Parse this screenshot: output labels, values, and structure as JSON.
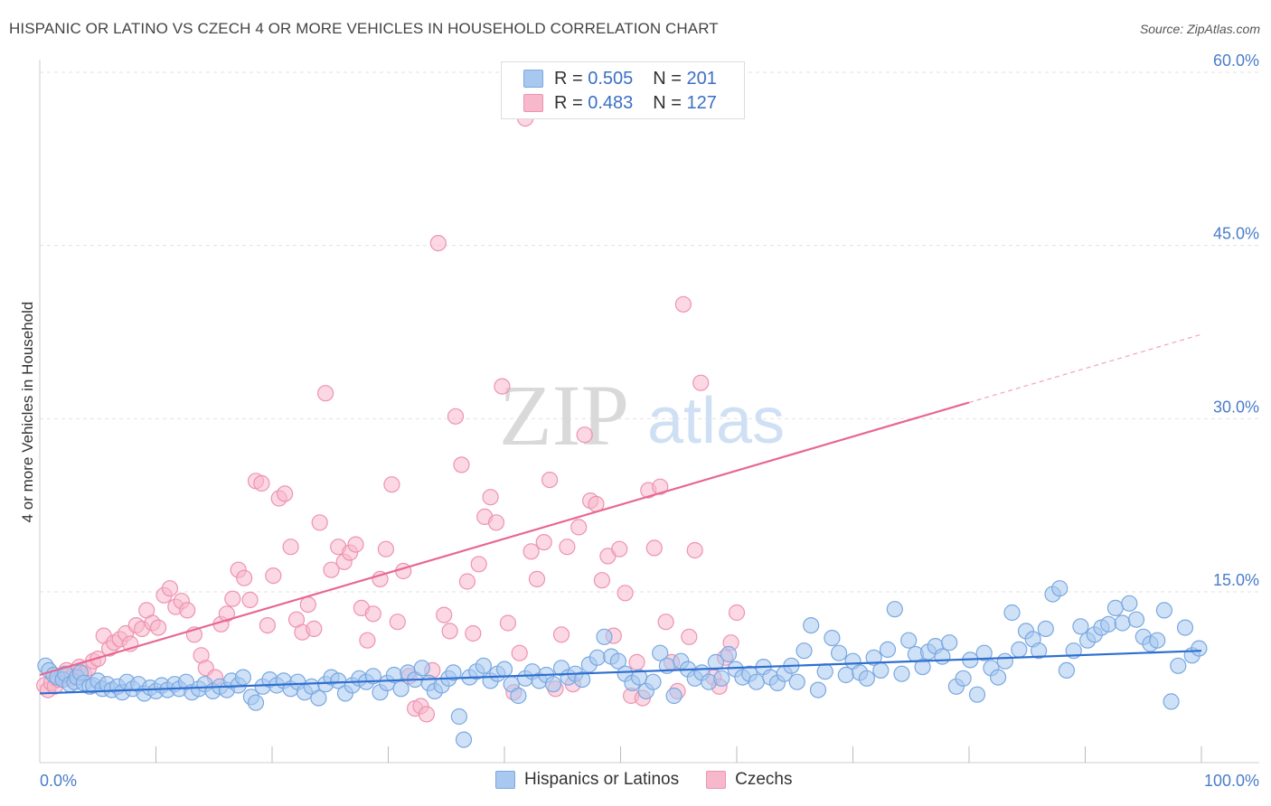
{
  "title": "HISPANIC OR LATINO VS CZECH 4 OR MORE VEHICLES IN HOUSEHOLD CORRELATION CHART",
  "source": "Source: ZipAtlas.com",
  "watermark": {
    "zip": "ZIP",
    "atlas": "atlas"
  },
  "legend_top": [
    {
      "r_label": "R =",
      "r_value": "0.505",
      "n_label": "N =",
      "n_value": "201"
    },
    {
      "r_label": "R =",
      "r_value": "0.483",
      "n_label": "N =",
      "n_value": "127"
    }
  ],
  "legend_bottom": [
    {
      "label": "Hispanics or Latinos"
    },
    {
      "label": "Czechs"
    }
  ],
  "colors": {
    "blue_fill": "#a8c8f0",
    "blue_stroke": "#7aa8e0",
    "blue_line": "#2f6fd0",
    "pink_fill": "#f7b8cc",
    "pink_stroke": "#ee93b0",
    "pink_line": "#e8678f",
    "tick_label": "#4a7cc9",
    "grid": "#e2e2e2"
  },
  "chart_data": {
    "type": "scatter",
    "title": "HISPANIC OR LATINO VS CZECH 4 OR MORE VEHICLES IN HOUSEHOLD CORRELATION CHART",
    "xlabel": "",
    "ylabel": "4 or more Vehicles in Household",
    "xlim": [
      0,
      100
    ],
    "ylim": [
      0,
      60
    ],
    "x_tick_labels": [
      "0.0%",
      "100.0%"
    ],
    "y_ticks": [
      15,
      30,
      45,
      60
    ],
    "y_tick_labels": [
      "15.0%",
      "30.0%",
      "45.0%",
      "60.0%"
    ],
    "grid": "horizontal dashed",
    "legend_position": "top-center",
    "series": [
      {
        "name": "Hispanics or Latinos",
        "color": "#a8c8f0",
        "R": 0.505,
        "N": 201,
        "trend": {
          "x": [
            0,
            100
          ],
          "y": [
            6.2,
            9.9
          ]
        },
        "points": [
          [
            0.5,
            8.6
          ],
          [
            0.8,
            8.2
          ],
          [
            1.2,
            7.8
          ],
          [
            1.5,
            7.6
          ],
          [
            2.0,
            7.4
          ],
          [
            2.2,
            7.9
          ],
          [
            2.6,
            7.0
          ],
          [
            3.0,
            7.2
          ],
          [
            3.2,
            7.6
          ],
          [
            3.5,
            8.0
          ],
          [
            3.8,
            7.1
          ],
          [
            4.3,
            6.8
          ],
          [
            4.6,
            6.9
          ],
          [
            5.0,
            7.3
          ],
          [
            5.4,
            6.6
          ],
          [
            5.8,
            7.0
          ],
          [
            6.2,
            6.5
          ],
          [
            6.7,
            6.8
          ],
          [
            7.1,
            6.3
          ],
          [
            7.5,
            7.2
          ],
          [
            8.0,
            6.6
          ],
          [
            8.5,
            7.0
          ],
          [
            9.0,
            6.2
          ],
          [
            9.5,
            6.7
          ],
          [
            10.0,
            6.4
          ],
          [
            10.5,
            6.9
          ],
          [
            11.0,
            6.5
          ],
          [
            11.6,
            7.0
          ],
          [
            12.0,
            6.6
          ],
          [
            12.6,
            7.2
          ],
          [
            13.1,
            6.3
          ],
          [
            13.7,
            6.6
          ],
          [
            14.2,
            7.0
          ],
          [
            14.9,
            6.4
          ],
          [
            15.5,
            6.8
          ],
          [
            16.1,
            6.5
          ],
          [
            16.5,
            7.3
          ],
          [
            17.1,
            6.9
          ],
          [
            17.5,
            7.6
          ],
          [
            18.2,
            5.9
          ],
          [
            18.6,
            5.4
          ],
          [
            19.2,
            6.8
          ],
          [
            19.8,
            7.4
          ],
          [
            20.4,
            6.9
          ],
          [
            21.0,
            7.3
          ],
          [
            21.6,
            6.6
          ],
          [
            22.2,
            7.2
          ],
          [
            22.8,
            6.3
          ],
          [
            23.4,
            6.8
          ],
          [
            24.0,
            5.8
          ],
          [
            24.6,
            7.0
          ],
          [
            25.1,
            7.6
          ],
          [
            25.7,
            7.3
          ],
          [
            26.3,
            6.2
          ],
          [
            26.9,
            6.9
          ],
          [
            27.5,
            7.5
          ],
          [
            28.1,
            7.2
          ],
          [
            28.7,
            7.7
          ],
          [
            29.3,
            6.3
          ],
          [
            29.9,
            7.1
          ],
          [
            30.5,
            7.8
          ],
          [
            31.1,
            6.6
          ],
          [
            31.7,
            8.0
          ],
          [
            32.3,
            7.4
          ],
          [
            32.9,
            8.4
          ],
          [
            33.5,
            7.1
          ],
          [
            34.0,
            6.4
          ],
          [
            34.6,
            6.9
          ],
          [
            35.2,
            7.5
          ],
          [
            35.6,
            8.0
          ],
          [
            36.1,
            4.2
          ],
          [
            36.5,
            2.2
          ],
          [
            37.0,
            7.6
          ],
          [
            37.6,
            8.1
          ],
          [
            38.2,
            8.6
          ],
          [
            38.8,
            7.3
          ],
          [
            39.4,
            7.9
          ],
          [
            40.0,
            8.3
          ],
          [
            40.6,
            7.0
          ],
          [
            41.2,
            6.0
          ],
          [
            41.8,
            7.5
          ],
          [
            42.4,
            8.1
          ],
          [
            43.0,
            7.3
          ],
          [
            43.6,
            7.8
          ],
          [
            44.2,
            7.0
          ],
          [
            44.9,
            8.4
          ],
          [
            45.5,
            7.6
          ],
          [
            46.1,
            7.9
          ],
          [
            46.7,
            7.4
          ],
          [
            47.3,
            8.7
          ],
          [
            48.0,
            9.3
          ],
          [
            48.6,
            11.1
          ],
          [
            49.2,
            9.4
          ],
          [
            49.8,
            9.0
          ],
          [
            50.4,
            7.9
          ],
          [
            51.0,
            7.1
          ],
          [
            51.6,
            7.6
          ],
          [
            52.2,
            6.4
          ],
          [
            52.8,
            7.2
          ],
          [
            53.4,
            9.7
          ],
          [
            54.0,
            8.6
          ],
          [
            54.6,
            6.0
          ],
          [
            55.2,
            9.0
          ],
          [
            55.8,
            8.3
          ],
          [
            56.4,
            7.5
          ],
          [
            57.0,
            8.0
          ],
          [
            57.6,
            7.2
          ],
          [
            58.2,
            8.9
          ],
          [
            58.7,
            7.5
          ],
          [
            59.3,
            9.6
          ],
          [
            59.9,
            8.3
          ],
          [
            60.5,
            7.6
          ],
          [
            61.1,
            7.9
          ],
          [
            61.7,
            7.2
          ],
          [
            62.3,
            8.5
          ],
          [
            62.9,
            7.6
          ],
          [
            63.5,
            7.1
          ],
          [
            64.1,
            7.9
          ],
          [
            64.7,
            8.6
          ],
          [
            65.2,
            7.2
          ],
          [
            65.8,
            9.9
          ],
          [
            66.4,
            12.1
          ],
          [
            67.0,
            6.5
          ],
          [
            67.6,
            8.1
          ],
          [
            68.2,
            11.0
          ],
          [
            68.8,
            9.7
          ],
          [
            69.4,
            7.8
          ],
          [
            70.0,
            9.0
          ],
          [
            70.6,
            8.0
          ],
          [
            71.2,
            7.5
          ],
          [
            71.8,
            9.3
          ],
          [
            72.4,
            8.2
          ],
          [
            73.0,
            10.0
          ],
          [
            73.6,
            13.5
          ],
          [
            74.2,
            7.9
          ],
          [
            74.8,
            10.8
          ],
          [
            75.4,
            9.6
          ],
          [
            76.0,
            8.5
          ],
          [
            76.5,
            9.8
          ],
          [
            77.1,
            10.3
          ],
          [
            77.7,
            9.4
          ],
          [
            78.3,
            10.6
          ],
          [
            78.9,
            6.8
          ],
          [
            79.5,
            7.5
          ],
          [
            80.1,
            9.1
          ],
          [
            80.7,
            6.1
          ],
          [
            81.3,
            9.7
          ],
          [
            81.9,
            8.4
          ],
          [
            82.5,
            7.6
          ],
          [
            83.1,
            9.0
          ],
          [
            83.7,
            13.2
          ],
          [
            84.3,
            10.0
          ],
          [
            84.9,
            11.6
          ],
          [
            85.5,
            10.9
          ],
          [
            86.0,
            9.9
          ],
          [
            86.6,
            11.8
          ],
          [
            87.2,
            14.8
          ],
          [
            87.8,
            15.3
          ],
          [
            88.4,
            8.2
          ],
          [
            89.0,
            9.9
          ],
          [
            89.6,
            12.0
          ],
          [
            90.2,
            10.8
          ],
          [
            90.8,
            11.3
          ],
          [
            91.4,
            11.9
          ],
          [
            92.0,
            12.2
          ],
          [
            92.6,
            13.6
          ],
          [
            93.2,
            12.3
          ],
          [
            93.8,
            14.0
          ],
          [
            94.4,
            12.6
          ],
          [
            95.0,
            11.1
          ],
          [
            95.6,
            10.5
          ],
          [
            96.2,
            10.8
          ],
          [
            96.8,
            13.4
          ],
          [
            97.4,
            5.5
          ],
          [
            98.0,
            8.6
          ],
          [
            98.6,
            11.9
          ],
          [
            99.2,
            9.5
          ],
          [
            99.8,
            10.1
          ]
        ]
      },
      {
        "name": "Czechs",
        "color": "#f7b8cc",
        "R": 0.483,
        "N": 127,
        "trend": {
          "x": [
            0,
            80
          ],
          "y": [
            7.8,
            31.4
          ],
          "dashed_extension": {
            "x": [
              80,
              100
            ],
            "y": [
              31.4,
              37.3
            ]
          }
        },
        "points": [
          [
            0.4,
            6.9
          ],
          [
            0.7,
            6.5
          ],
          [
            1.0,
            7.1
          ],
          [
            1.3,
            6.8
          ],
          [
            1.6,
            7.4
          ],
          [
            2.0,
            7.8
          ],
          [
            2.3,
            8.2
          ],
          [
            2.7,
            7.5
          ],
          [
            3.0,
            8.0
          ],
          [
            3.4,
            8.5
          ],
          [
            3.8,
            7.9
          ],
          [
            4.2,
            8.4
          ],
          [
            4.6,
            9.0
          ],
          [
            5.0,
            9.2
          ],
          [
            5.5,
            11.2
          ],
          [
            6.0,
            10.1
          ],
          [
            6.4,
            10.6
          ],
          [
            6.9,
            10.9
          ],
          [
            7.4,
            11.4
          ],
          [
            7.8,
            10.5
          ],
          [
            8.3,
            12.1
          ],
          [
            8.8,
            11.8
          ],
          [
            9.2,
            13.4
          ],
          [
            9.7,
            12.3
          ],
          [
            10.2,
            11.9
          ],
          [
            10.7,
            14.7
          ],
          [
            11.2,
            15.3
          ],
          [
            11.7,
            13.7
          ],
          [
            12.2,
            14.2
          ],
          [
            12.7,
            13.4
          ],
          [
            13.3,
            11.3
          ],
          [
            13.9,
            9.5
          ],
          [
            14.3,
            8.4
          ],
          [
            15.1,
            7.6
          ],
          [
            15.6,
            12.2
          ],
          [
            16.1,
            13.1
          ],
          [
            16.6,
            14.4
          ],
          [
            17.1,
            16.9
          ],
          [
            17.6,
            16.2
          ],
          [
            18.1,
            14.3
          ],
          [
            18.6,
            24.6
          ],
          [
            19.1,
            24.4
          ],
          [
            19.6,
            12.1
          ],
          [
            20.1,
            16.4
          ],
          [
            20.6,
            23.1
          ],
          [
            21.1,
            23.5
          ],
          [
            21.6,
            18.9
          ],
          [
            22.1,
            12.6
          ],
          [
            22.6,
            11.5
          ],
          [
            23.1,
            13.9
          ],
          [
            23.6,
            11.8
          ],
          [
            24.1,
            21.0
          ],
          [
            24.6,
            32.2
          ],
          [
            25.1,
            16.9
          ],
          [
            25.7,
            18.9
          ],
          [
            26.2,
            17.6
          ],
          [
            26.7,
            18.4
          ],
          [
            27.2,
            19.1
          ],
          [
            27.7,
            13.6
          ],
          [
            28.2,
            10.8
          ],
          [
            28.7,
            13.1
          ],
          [
            29.3,
            16.1
          ],
          [
            29.8,
            18.7
          ],
          [
            30.3,
            24.3
          ],
          [
            30.8,
            12.4
          ],
          [
            31.3,
            16.8
          ],
          [
            31.8,
            7.7
          ],
          [
            32.3,
            4.9
          ],
          [
            32.8,
            5.1
          ],
          [
            33.3,
            4.4
          ],
          [
            33.8,
            8.2
          ],
          [
            34.3,
            45.2
          ],
          [
            34.8,
            13.0
          ],
          [
            35.3,
            11.6
          ],
          [
            35.8,
            30.2
          ],
          [
            36.3,
            26.0
          ],
          [
            36.8,
            15.9
          ],
          [
            37.3,
            11.4
          ],
          [
            37.8,
            17.4
          ],
          [
            38.3,
            21.5
          ],
          [
            38.8,
            23.2
          ],
          [
            39.3,
            21.0
          ],
          [
            39.8,
            32.8
          ],
          [
            40.3,
            12.3
          ],
          [
            40.8,
            6.3
          ],
          [
            41.3,
            9.7
          ],
          [
            41.8,
            56.0
          ],
          [
            42.3,
            18.5
          ],
          [
            42.8,
            16.1
          ],
          [
            43.4,
            19.3
          ],
          [
            43.9,
            24.7
          ],
          [
            44.4,
            6.6
          ],
          [
            44.9,
            11.3
          ],
          [
            45.4,
            18.9
          ],
          [
            45.9,
            7.0
          ],
          [
            46.4,
            20.6
          ],
          [
            46.9,
            28.6
          ],
          [
            47.4,
            22.9
          ],
          [
            47.9,
            22.6
          ],
          [
            48.4,
            16.0
          ],
          [
            48.9,
            18.1
          ],
          [
            49.4,
            11.2
          ],
          [
            49.9,
            18.7
          ],
          [
            50.4,
            14.9
          ],
          [
            50.9,
            6.0
          ],
          [
            51.4,
            8.9
          ],
          [
            51.9,
            5.8
          ],
          [
            52.4,
            23.8
          ],
          [
            52.9,
            18.8
          ],
          [
            53.4,
            24.1
          ],
          [
            53.9,
            12.4
          ],
          [
            54.4,
            8.9
          ],
          [
            54.9,
            6.4
          ],
          [
            55.4,
            39.9
          ],
          [
            55.9,
            11.1
          ],
          [
            56.4,
            18.6
          ],
          [
            56.9,
            33.1
          ],
          [
            57.4,
            60.1
          ],
          [
            58.0,
            7.6
          ],
          [
            58.5,
            6.8
          ],
          [
            59.0,
            9.3
          ],
          [
            59.5,
            10.6
          ],
          [
            60.0,
            13.2
          ]
        ]
      }
    ]
  }
}
